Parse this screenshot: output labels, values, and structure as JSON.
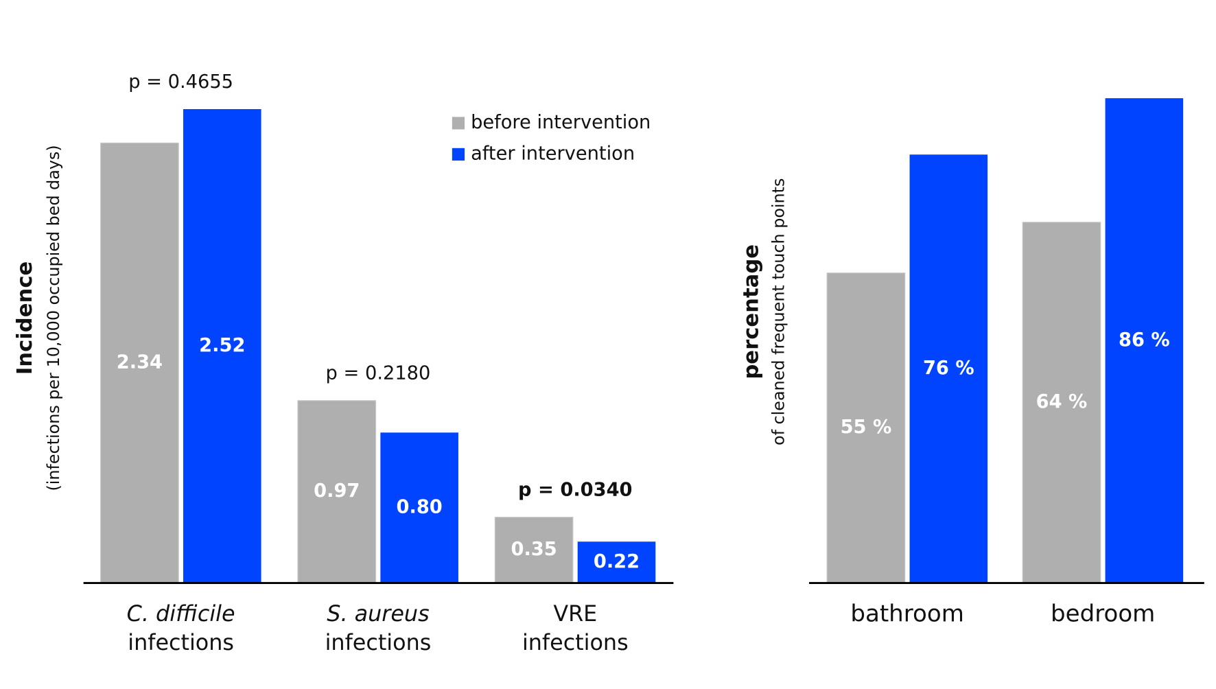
{
  "chart_data": [
    {
      "type": "bar",
      "ylabel": "Incidence",
      "ylabel_sub": "(infections per 10,000 occupied bed days)",
      "categories": [
        "C. difficile",
        "S. aureus",
        "VRE"
      ],
      "category_suffix": [
        "infections",
        "infections",
        "infections"
      ],
      "category_italic": [
        true,
        true,
        false
      ],
      "annotations": [
        "p = 0.4655",
        "p = 0.2180",
        "p = 0.0340"
      ],
      "annotation_bold": [
        false,
        false,
        true
      ],
      "series": [
        {
          "name": "before intervention",
          "color": "#afafaf",
          "values": [
            2.34,
            0.97,
            0.35
          ]
        },
        {
          "name": "after intervention",
          "color": "#0044ff",
          "values": [
            2.52,
            0.8,
            0.22
          ],
          "value_labels": [
            "2.52",
            "0.80",
            "0.22"
          ]
        }
      ],
      "legend": "upper right"
    },
    {
      "type": "bar",
      "ylabel": "percentage",
      "ylabel_sub": "of cleaned frequent touch points",
      "categories": [
        "bathroom",
        "bedroom"
      ],
      "series": [
        {
          "color": "#afafaf",
          "values": [
            55,
            64
          ],
          "value_labels": [
            "55 %",
            "64 %"
          ]
        },
        {
          "color": "#0044ff",
          "values": [
            76,
            86
          ],
          "value_labels": [
            "76 %",
            "86 %"
          ]
        }
      ]
    }
  ]
}
